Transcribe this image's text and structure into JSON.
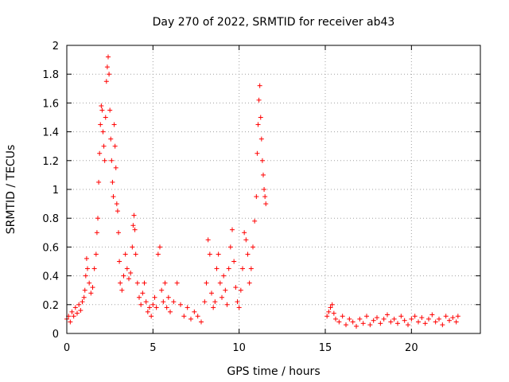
{
  "chart_data": {
    "type": "scatter",
    "title": "Day 270 of 2022, SRMTID for receiver ab43",
    "xlabel": "GPS time / hours",
    "ylabel": "SRMTID / TECUs",
    "xlim": [
      0,
      24
    ],
    "ylim": [
      0,
      2
    ],
    "xticks": [
      0,
      5,
      10,
      15,
      20
    ],
    "xtick_labels": [
      "0",
      "5",
      "10",
      "15",
      "20"
    ],
    "yticks": [
      0,
      0.2,
      0.4,
      0.6,
      0.8,
      1,
      1.2,
      1.4,
      1.6,
      1.8,
      2
    ],
    "ytick_labels": [
      "0",
      "0.2",
      "0.4",
      "0.6",
      "0.8",
      "1",
      "1.2",
      "1.4",
      "1.6",
      "1.8",
      "2"
    ],
    "grid": true,
    "marker": "+",
    "series": [
      {
        "name": "SRMTID",
        "color": "#ff0000",
        "points": [
          [
            0.0,
            0.1
          ],
          [
            0.1,
            0.12
          ],
          [
            0.2,
            0.08
          ],
          [
            0.3,
            0.15
          ],
          [
            0.4,
            0.12
          ],
          [
            0.5,
            0.18
          ],
          [
            0.6,
            0.14
          ],
          [
            0.7,
            0.2
          ],
          [
            0.8,
            0.16
          ],
          [
            0.9,
            0.22
          ],
          [
            1.0,
            0.25
          ],
          [
            1.05,
            0.3
          ],
          [
            1.1,
            0.4
          ],
          [
            1.15,
            0.52
          ],
          [
            1.2,
            0.45
          ],
          [
            1.3,
            0.35
          ],
          [
            1.4,
            0.28
          ],
          [
            1.5,
            0.32
          ],
          [
            1.6,
            0.45
          ],
          [
            1.7,
            0.55
          ],
          [
            1.75,
            0.7
          ],
          [
            1.8,
            0.8
          ],
          [
            1.85,
            1.05
          ],
          [
            1.9,
            1.25
          ],
          [
            1.95,
            1.45
          ],
          [
            2.0,
            1.58
          ],
          [
            2.05,
            1.55
          ],
          [
            2.1,
            1.4
          ],
          [
            2.15,
            1.3
          ],
          [
            2.2,
            1.2
          ],
          [
            2.25,
            1.5
          ],
          [
            2.3,
            1.75
          ],
          [
            2.35,
            1.85
          ],
          [
            2.4,
            1.92
          ],
          [
            2.45,
            1.8
          ],
          [
            2.5,
            1.55
          ],
          [
            2.55,
            1.35
          ],
          [
            2.6,
            1.2
          ],
          [
            2.65,
            1.05
          ],
          [
            2.7,
            0.95
          ],
          [
            2.75,
            1.45
          ],
          [
            2.8,
            1.3
          ],
          [
            2.85,
            1.15
          ],
          [
            2.9,
            0.9
          ],
          [
            2.95,
            0.85
          ],
          [
            3.0,
            0.7
          ],
          [
            3.05,
            0.5
          ],
          [
            3.1,
            0.35
          ],
          [
            3.2,
            0.3
          ],
          [
            3.3,
            0.4
          ],
          [
            3.4,
            0.55
          ],
          [
            3.5,
            0.45
          ],
          [
            3.6,
            0.38
          ],
          [
            3.7,
            0.42
          ],
          [
            3.8,
            0.6
          ],
          [
            3.85,
            0.75
          ],
          [
            3.9,
            0.82
          ],
          [
            3.95,
            0.72
          ],
          [
            4.0,
            0.55
          ],
          [
            4.1,
            0.35
          ],
          [
            4.2,
            0.25
          ],
          [
            4.3,
            0.2
          ],
          [
            4.4,
            0.28
          ],
          [
            4.5,
            0.35
          ],
          [
            4.6,
            0.22
          ],
          [
            4.7,
            0.15
          ],
          [
            4.8,
            0.18
          ],
          [
            4.9,
            0.12
          ],
          [
            5.0,
            0.2
          ],
          [
            5.1,
            0.25
          ],
          [
            5.2,
            0.18
          ],
          [
            5.3,
            0.55
          ],
          [
            5.4,
            0.6
          ],
          [
            5.5,
            0.3
          ],
          [
            5.6,
            0.22
          ],
          [
            5.7,
            0.35
          ],
          [
            5.8,
            0.18
          ],
          [
            5.9,
            0.25
          ],
          [
            6.0,
            0.15
          ],
          [
            6.2,
            0.22
          ],
          [
            6.4,
            0.35
          ],
          [
            6.6,
            0.2
          ],
          [
            6.8,
            0.12
          ],
          [
            7.0,
            0.18
          ],
          [
            7.2,
            0.1
          ],
          [
            7.4,
            0.15
          ],
          [
            7.6,
            0.12
          ],
          [
            7.8,
            0.08
          ],
          [
            8.0,
            0.22
          ],
          [
            8.1,
            0.35
          ],
          [
            8.2,
            0.65
          ],
          [
            8.3,
            0.55
          ],
          [
            8.4,
            0.28
          ],
          [
            8.5,
            0.18
          ],
          [
            8.6,
            0.22
          ],
          [
            8.7,
            0.45
          ],
          [
            8.8,
            0.55
          ],
          [
            8.9,
            0.35
          ],
          [
            9.0,
            0.25
          ],
          [
            9.1,
            0.4
          ],
          [
            9.2,
            0.3
          ],
          [
            9.3,
            0.2
          ],
          [
            9.4,
            0.45
          ],
          [
            9.5,
            0.6
          ],
          [
            9.6,
            0.72
          ],
          [
            9.7,
            0.5
          ],
          [
            9.8,
            0.32
          ],
          [
            9.9,
            0.22
          ],
          [
            10.0,
            0.18
          ],
          [
            10.1,
            0.3
          ],
          [
            10.2,
            0.45
          ],
          [
            10.3,
            0.7
          ],
          [
            10.4,
            0.65
          ],
          [
            10.5,
            0.55
          ],
          [
            10.6,
            0.35
          ],
          [
            10.7,
            0.45
          ],
          [
            10.8,
            0.6
          ],
          [
            10.9,
            0.78
          ],
          [
            11.0,
            0.95
          ],
          [
            11.05,
            1.25
          ],
          [
            11.1,
            1.45
          ],
          [
            11.15,
            1.62
          ],
          [
            11.2,
            1.72
          ],
          [
            11.25,
            1.5
          ],
          [
            11.3,
            1.35
          ],
          [
            11.35,
            1.2
          ],
          [
            11.4,
            1.1
          ],
          [
            11.45,
            1.0
          ],
          [
            11.5,
            0.95
          ],
          [
            11.55,
            0.9
          ],
          [
            15.1,
            0.12
          ],
          [
            15.2,
            0.15
          ],
          [
            15.3,
            0.18
          ],
          [
            15.4,
            0.2
          ],
          [
            15.5,
            0.14
          ],
          [
            15.6,
            0.1
          ],
          [
            15.8,
            0.08
          ],
          [
            16.0,
            0.12
          ],
          [
            16.2,
            0.06
          ],
          [
            16.4,
            0.1
          ],
          [
            16.6,
            0.08
          ],
          [
            16.8,
            0.05
          ],
          [
            17.0,
            0.1
          ],
          [
            17.2,
            0.07
          ],
          [
            17.4,
            0.12
          ],
          [
            17.6,
            0.06
          ],
          [
            17.8,
            0.09
          ],
          [
            18.0,
            0.11
          ],
          [
            18.2,
            0.07
          ],
          [
            18.4,
            0.1
          ],
          [
            18.6,
            0.13
          ],
          [
            18.8,
            0.08
          ],
          [
            19.0,
            0.1
          ],
          [
            19.2,
            0.07
          ],
          [
            19.4,
            0.12
          ],
          [
            19.6,
            0.09
          ],
          [
            19.8,
            0.06
          ],
          [
            20.0,
            0.1
          ],
          [
            20.2,
            0.12
          ],
          [
            20.4,
            0.08
          ],
          [
            20.6,
            0.11
          ],
          [
            20.8,
            0.07
          ],
          [
            21.0,
            0.1
          ],
          [
            21.2,
            0.13
          ],
          [
            21.4,
            0.08
          ],
          [
            21.6,
            0.1
          ],
          [
            21.8,
            0.06
          ],
          [
            22.0,
            0.12
          ],
          [
            22.2,
            0.09
          ],
          [
            22.4,
            0.11
          ],
          [
            22.6,
            0.08
          ],
          [
            22.7,
            0.12
          ]
        ]
      }
    ]
  }
}
